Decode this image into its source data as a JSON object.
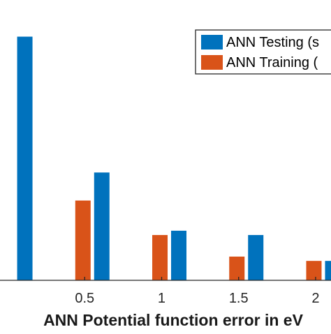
{
  "chart_data": {
    "type": "bar",
    "xlabel": "ANN Potential function error in eV",
    "xlim": [
      -0.05,
      2.1
    ],
    "ylim": [
      0,
      130
    ],
    "x_ticks": [
      {
        "value": 0.5,
        "label": "0.5"
      },
      {
        "value": 1,
        "label": "1"
      },
      {
        "value": 1.5,
        "label": "1.5"
      },
      {
        "value": 2,
        "label": "2"
      }
    ],
    "series": [
      {
        "name": "ANN Testing (s",
        "color": "#0072BD",
        "x": [
          0.05,
          0.55,
          1.05,
          1.55,
          2.05
        ],
        "values": [
          113,
          50,
          23,
          21,
          9
        ]
      },
      {
        "name": "ANN Training (",
        "color": "#D95319",
        "x": [
          0.05,
          0.55,
          1.05,
          1.55,
          2.05
        ],
        "values": [
          0,
          37,
          21,
          11,
          9
        ]
      }
    ],
    "legend": {
      "position": "top-right"
    }
  }
}
